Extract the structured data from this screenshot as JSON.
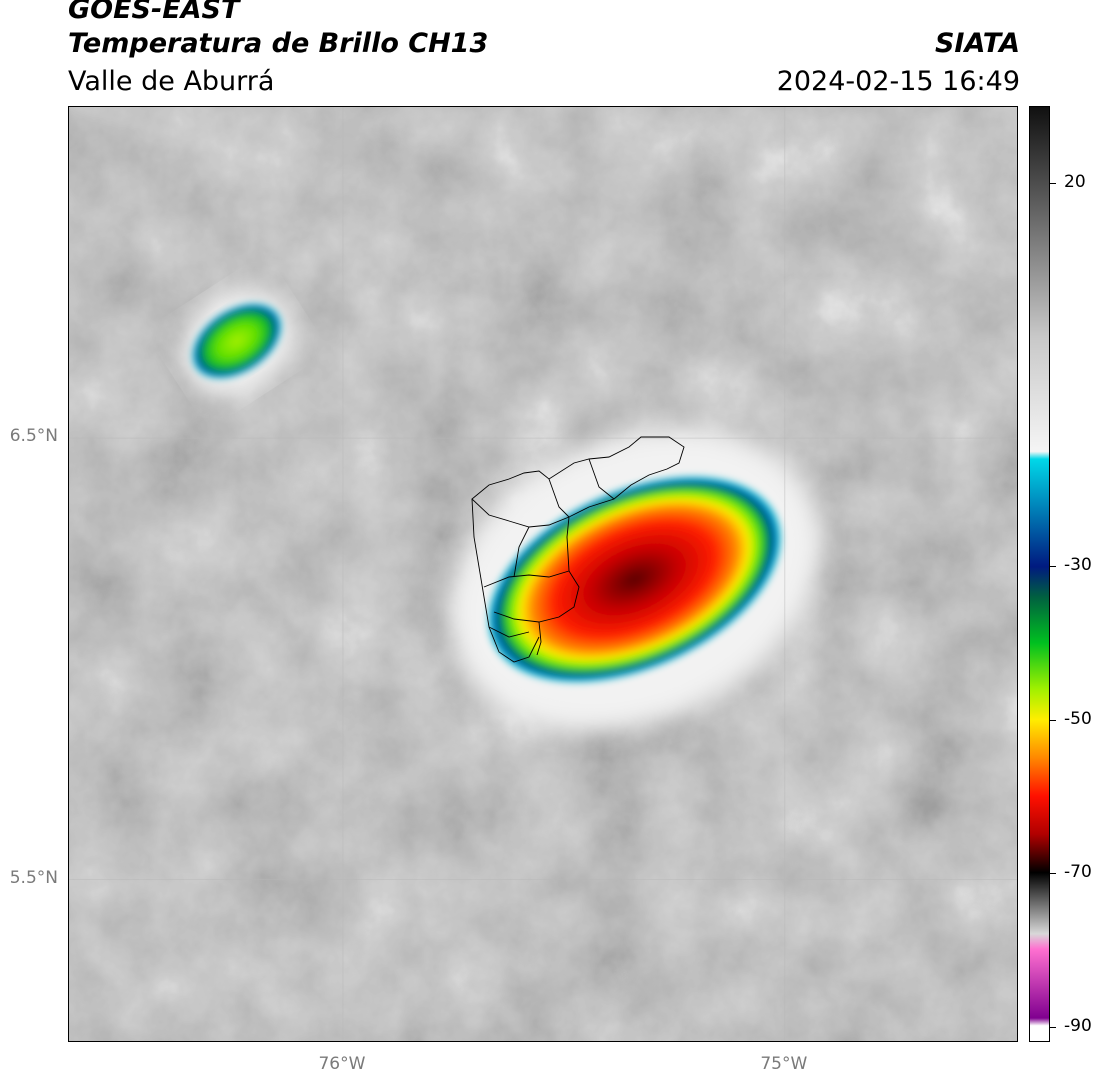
{
  "header": {
    "satellite": "GOES-EAST",
    "product": "Temperatura de Brillo CH13",
    "region": "Valle de Aburrá",
    "organization": "SIATA",
    "timestamp": "2024-02-15 16:49"
  },
  "map": {
    "extent": {
      "lon_min": -76.62,
      "lon_max": -74.47,
      "lat_min": 5.13,
      "lat_max": 7.25
    },
    "background": "grayscale brightness temperature imagery",
    "gridlines": true,
    "gridline_color": "#b8b8b8",
    "lat_ticks": [
      {
        "value": 6.5,
        "label": "6.5°N"
      },
      {
        "value": 5.5,
        "label": "5.5°N"
      }
    ],
    "lon_ticks": [
      {
        "value": -76.0,
        "label": "76°W"
      },
      {
        "value": -75.0,
        "label": "75°W"
      }
    ],
    "features": [
      {
        "name": "main convective cell",
        "center": [
          -75.34,
          6.18
        ],
        "rx_deg": 0.7,
        "ry_deg": 0.2,
        "rotation_deg": -24,
        "min_temp": -70
      },
      {
        "name": "small convective cell",
        "center": [
          -76.24,
          6.72
        ],
        "rx_deg": 0.22,
        "ry_deg": 0.07,
        "rotation_deg": -33,
        "min_temp": -45
      }
    ],
    "boundaries": "Valle de Aburrá municipality outlines"
  },
  "colorbar": {
    "vmin": -92,
    "vmax": 30,
    "ticks": [
      {
        "value": 20,
        "label": "20"
      },
      {
        "value": -30,
        "label": "-30"
      },
      {
        "value": -50,
        "label": "-50"
      },
      {
        "value": -70,
        "label": "-70"
      },
      {
        "value": -90,
        "label": "-90"
      }
    ],
    "stops": [
      {
        "value": 30,
        "color": "#101010"
      },
      {
        "value": 0,
        "color": "#c8c8c8"
      },
      {
        "value": -15,
        "color": "#f5f5f5"
      },
      {
        "value": -16,
        "color": "#00d8e8"
      },
      {
        "value": -30,
        "color": "#001a80"
      },
      {
        "value": -34,
        "color": "#006040"
      },
      {
        "value": -40,
        "color": "#00c020"
      },
      {
        "value": -46,
        "color": "#a0f000"
      },
      {
        "value": -50,
        "color": "#ffee00"
      },
      {
        "value": -55,
        "color": "#ff8800"
      },
      {
        "value": -60,
        "color": "#ff1000"
      },
      {
        "value": -65,
        "color": "#b00000"
      },
      {
        "value": -70,
        "color": "#000000"
      },
      {
        "value": -78,
        "color": "#d8d8d8"
      },
      {
        "value": -80,
        "color": "#ff70d0"
      },
      {
        "value": -89,
        "color": "#800090"
      },
      {
        "value": -90,
        "color": "#ffffff"
      }
    ]
  }
}
